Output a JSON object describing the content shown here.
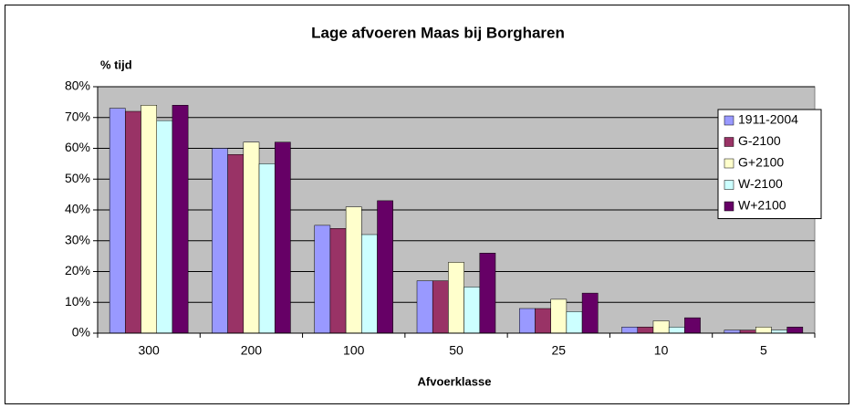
{
  "chart_data": {
    "type": "bar",
    "title": "Lage afvoeren Maas bij Borgharen",
    "y_label": "% tijd",
    "x_label": "Afvoerklasse",
    "categories": [
      "300",
      "200",
      "100",
      "50",
      "25",
      "10",
      "5"
    ],
    "series": [
      {
        "name": "1911-2004",
        "color": "#9999ff",
        "values": [
          73,
          60,
          35,
          17,
          8,
          2,
          1
        ]
      },
      {
        "name": "G-2100",
        "color": "#993366",
        "values": [
          72,
          58,
          34,
          17,
          8,
          2,
          1
        ]
      },
      {
        "name": "G+2100",
        "color": "#ffffcc",
        "values": [
          74,
          62,
          41,
          23,
          11,
          4,
          2
        ]
      },
      {
        "name": "W-2100",
        "color": "#ccffff",
        "values": [
          69,
          55,
          32,
          15,
          7,
          2,
          1
        ]
      },
      {
        "name": "W+2100",
        "color": "#660066",
        "values": [
          74,
          62,
          43,
          26,
          13,
          5,
          2
        ]
      }
    ],
    "ylim": [
      0,
      80
    ],
    "yticks": [
      {
        "value": 0,
        "label": "0%"
      },
      {
        "value": 10,
        "label": "10%"
      },
      {
        "value": 20,
        "label": "20%"
      },
      {
        "value": 30,
        "label": "30%"
      },
      {
        "value": 40,
        "label": "40%"
      },
      {
        "value": 50,
        "label": "50%"
      },
      {
        "value": 60,
        "label": "60%"
      },
      {
        "value": 70,
        "label": "70%"
      },
      {
        "value": 80,
        "label": "80%"
      }
    ],
    "grid": true,
    "legend": "right"
  }
}
